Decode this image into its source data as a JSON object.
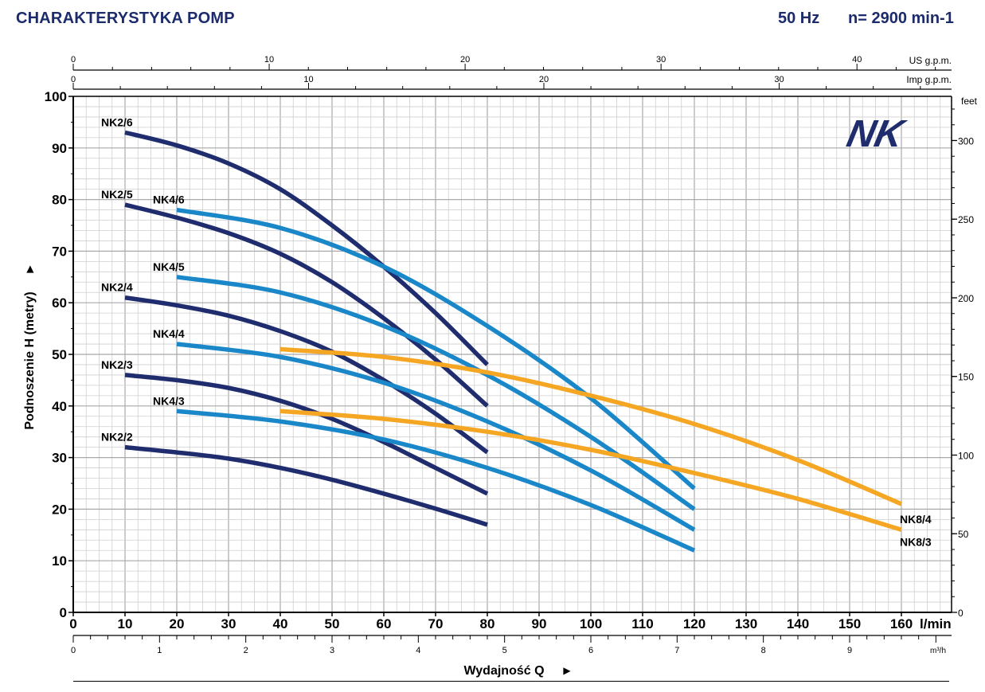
{
  "header": {
    "title": "CHARAKTERYSTYKA POMP",
    "frequency": "50 Hz",
    "speed": "n= 2900 min-1"
  },
  "colors": {
    "nk2": "#1f2d6e",
    "nk4": "#1a87c9",
    "nk8": "#f5a623",
    "grid": "#bdbdbd",
    "title": "#1c2b6b"
  },
  "logo": {
    "text": "NK"
  },
  "chart_data": {
    "type": "line",
    "xlabel": "Wydajność Q",
    "ylabel": "Podnoszenie H  (metry)",
    "x_unit": "l/min",
    "x2_unit": "m³/h",
    "us_unit": "US g.p.m.",
    "imp_unit": "Imp g.p.m.",
    "feet_unit": "feet",
    "xlim": [
      0,
      170
    ],
    "ylim": [
      0,
      100
    ],
    "x_ticks": [
      0,
      10,
      20,
      30,
      40,
      50,
      60,
      70,
      80,
      90,
      100,
      110,
      120,
      130,
      140,
      150,
      160
    ],
    "y_ticks": [
      0,
      10,
      20,
      30,
      40,
      50,
      60,
      70,
      80,
      90,
      100
    ],
    "m3h_ticks": [
      0,
      1,
      2,
      3,
      4,
      5,
      6,
      7,
      8,
      9
    ],
    "usgpm_ticks": [
      0,
      10,
      20,
      30,
      40
    ],
    "impgpm_ticks": [
      0,
      10,
      20,
      30
    ],
    "feet_ticks": [
      0,
      50,
      100,
      150,
      200,
      250,
      300
    ],
    "grid": true,
    "series": [
      {
        "name": "NK2/6",
        "group": "nk2",
        "x": [
          10,
          20,
          30,
          40,
          50,
          60,
          70,
          80
        ],
        "y": [
          93,
          90.5,
          87,
          82,
          75,
          67,
          58,
          48
        ]
      },
      {
        "name": "NK2/5",
        "group": "nk2",
        "x": [
          10,
          20,
          30,
          40,
          50,
          60,
          70,
          80
        ],
        "y": [
          79,
          76.5,
          73.5,
          69.5,
          64,
          57,
          49,
          40
        ]
      },
      {
        "name": "NK2/4",
        "group": "nk2",
        "x": [
          10,
          20,
          30,
          40,
          50,
          60,
          70,
          80
        ],
        "y": [
          61,
          59.5,
          57.5,
          54.5,
          50.5,
          45,
          38.5,
          31
        ]
      },
      {
        "name": "NK2/3",
        "group": "nk2",
        "x": [
          10,
          20,
          30,
          40,
          50,
          60,
          70,
          80
        ],
        "y": [
          46,
          45,
          43.5,
          41,
          37.5,
          33,
          28,
          23
        ]
      },
      {
        "name": "NK2/2",
        "group": "nk2",
        "x": [
          10,
          20,
          30,
          40,
          50,
          60,
          70,
          80
        ],
        "y": [
          32,
          31,
          29.8,
          28,
          25.7,
          23,
          20.1,
          17
        ]
      },
      {
        "name": "NK4/6",
        "group": "nk4",
        "x": [
          20,
          40,
          60,
          80,
          100,
          120
        ],
        "y": [
          78,
          74.5,
          67,
          55.5,
          41.5,
          24
        ]
      },
      {
        "name": "NK4/5",
        "group": "nk4",
        "x": [
          20,
          40,
          60,
          80,
          100,
          120
        ],
        "y": [
          65,
          62,
          55.5,
          46,
          34,
          20
        ]
      },
      {
        "name": "NK4/4",
        "group": "nk4",
        "x": [
          20,
          40,
          60,
          80,
          100,
          120
        ],
        "y": [
          52,
          49.5,
          44.5,
          37,
          27.5,
          16
        ]
      },
      {
        "name": "NK4/3",
        "group": "nk4",
        "x": [
          20,
          40,
          60,
          80,
          100,
          120
        ],
        "y": [
          39,
          37,
          33.5,
          28,
          20.8,
          12
        ]
      },
      {
        "name": "NK8/4",
        "group": "nk8",
        "x": [
          40,
          60,
          80,
          100,
          120,
          140,
          160
        ],
        "y": [
          51,
          49.5,
          46.5,
          42,
          36.5,
          29.5,
          21
        ]
      },
      {
        "name": "NK8/3",
        "group": "nk8",
        "x": [
          40,
          60,
          80,
          100,
          120,
          140,
          160
        ],
        "y": [
          39,
          37.5,
          35,
          31.5,
          27,
          22,
          16
        ]
      }
    ]
  }
}
